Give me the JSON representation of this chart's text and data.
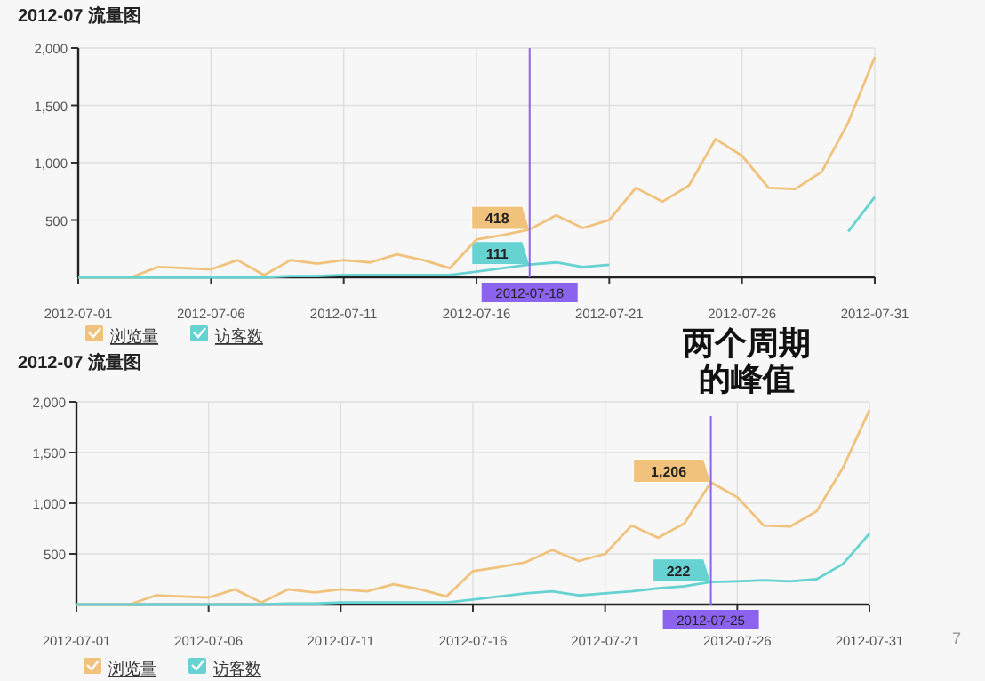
{
  "chart_data": [
    {
      "type": "line",
      "title": "2012-07 流量图",
      "x": [
        "2012-07-01",
        "2012-07-02",
        "2012-07-03",
        "2012-07-04",
        "2012-07-05",
        "2012-07-06",
        "2012-07-07",
        "2012-07-08",
        "2012-07-09",
        "2012-07-10",
        "2012-07-11",
        "2012-07-12",
        "2012-07-13",
        "2012-07-14",
        "2012-07-15",
        "2012-07-16",
        "2012-07-17",
        "2012-07-18",
        "2012-07-19",
        "2012-07-20",
        "2012-07-21",
        "2012-07-22",
        "2012-07-23",
        "2012-07-24",
        "2012-07-25",
        "2012-07-26",
        "2012-07-27",
        "2012-07-28",
        "2012-07-29",
        "2012-07-30",
        "2012-07-31"
      ],
      "series": [
        {
          "name": "浏览量",
          "color": "#f0c27c",
          "values": [
            0,
            0,
            0,
            90,
            80,
            70,
            150,
            20,
            150,
            120,
            150,
            130,
            200,
            150,
            80,
            330,
            370,
            418,
            540,
            430,
            500,
            780,
            660,
            800,
            1206,
            1060,
            780,
            770,
            920,
            1350,
            1920
          ]
        },
        {
          "name": "访客数",
          "color": "#66d2d2",
          "values": [
            0,
            0,
            0,
            0,
            0,
            0,
            0,
            0,
            10,
            10,
            20,
            20,
            20,
            20,
            20,
            50,
            80,
            111,
            130,
            90,
            110,
            null,
            null,
            null,
            null,
            null,
            null,
            null,
            null,
            400,
            700
          ]
        }
      ],
      "xlim": [
        "2012-07-01",
        "2012-07-31"
      ],
      "xticks": [
        "2012-07-01",
        "2012-07-06",
        "2012-07-11",
        "2012-07-16",
        "2012-07-21",
        "2012-07-26",
        "2012-07-31"
      ],
      "ylim": [
        0,
        2000
      ],
      "yticks": [
        {
          "value": 500,
          "label": "500"
        },
        {
          "value": 1000,
          "label": "1,000"
        },
        {
          "value": 1500,
          "label": "1,500"
        },
        {
          "value": 2000,
          "label": "2,000"
        }
      ],
      "grid": true,
      "legend": "bottom left",
      "ref_lines": [
        {
          "axis": "x",
          "value": "2012-07-18",
          "label": "2012-07-18",
          "color": "#8c63ee"
        }
      ],
      "annotations": [
        {
          "text": "418",
          "x": "2012-07-18",
          "y": 418
        },
        {
          "text": "111",
          "x": "2012-07-18",
          "y": 111
        },
        "两个周期的峰值"
      ]
    },
    {
      "type": "line",
      "title": "2012-07 流量图",
      "x": [
        "2012-07-01",
        "2012-07-02",
        "2012-07-03",
        "2012-07-04",
        "2012-07-05",
        "2012-07-06",
        "2012-07-07",
        "2012-07-08",
        "2012-07-09",
        "2012-07-10",
        "2012-07-11",
        "2012-07-12",
        "2012-07-13",
        "2012-07-14",
        "2012-07-15",
        "2012-07-16",
        "2012-07-17",
        "2012-07-18",
        "2012-07-19",
        "2012-07-20",
        "2012-07-21",
        "2012-07-22",
        "2012-07-23",
        "2012-07-24",
        "2012-07-25",
        "2012-07-26",
        "2012-07-27",
        "2012-07-28",
        "2012-07-29",
        "2012-07-30",
        "2012-07-31"
      ],
      "series": [
        {
          "name": "浏览量",
          "color": "#f0c27c",
          "values": [
            0,
            0,
            0,
            90,
            80,
            70,
            150,
            20,
            150,
            120,
            150,
            130,
            200,
            150,
            80,
            330,
            370,
            418,
            540,
            430,
            500,
            780,
            660,
            800,
            1206,
            1060,
            780,
            770,
            920,
            1350,
            1920
          ]
        },
        {
          "name": "访客数",
          "color": "#66d2d2",
          "values": [
            0,
            0,
            0,
            0,
            0,
            0,
            0,
            0,
            10,
            10,
            20,
            20,
            20,
            20,
            20,
            50,
            80,
            111,
            130,
            90,
            110,
            130,
            160,
            180,
            222,
            230,
            240,
            230,
            250,
            400,
            700
          ]
        }
      ],
      "xlim": [
        "2012-07-01",
        "2012-07-31"
      ],
      "xticks": [
        "2012-07-01",
        "2012-07-06",
        "2012-07-11",
        "2012-07-16",
        "2012-07-21",
        "2012-07-26",
        "2012-07-31"
      ],
      "ylim": [
        0,
        2000
      ],
      "yticks": [
        {
          "value": 500,
          "label": "500"
        },
        {
          "value": 1000,
          "label": "1,000"
        },
        {
          "value": 1500,
          "label": "1,500"
        },
        {
          "value": 2000,
          "label": "2,000"
        }
      ],
      "grid": true,
      "legend": "bottom left",
      "ref_lines": [
        {
          "axis": "x",
          "value": "2012-07-25",
          "label": "2012-07-25",
          "color": "#8c63ee"
        }
      ],
      "annotations": [
        {
          "text": "1,206",
          "x": "2012-07-25",
          "y": 1206
        },
        {
          "text": "222",
          "x": "2012-07-25",
          "y": 222
        },
        "7"
      ]
    }
  ]
}
